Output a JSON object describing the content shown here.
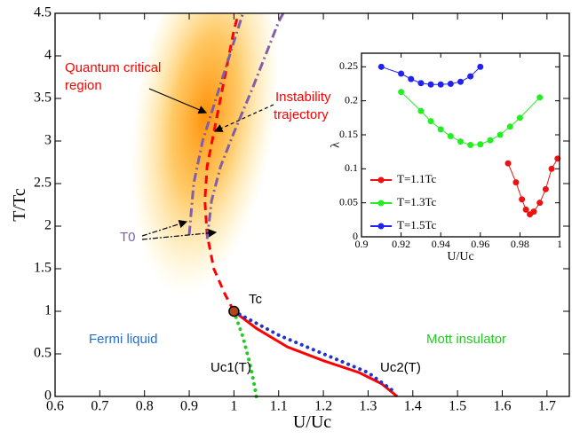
{
  "chart_data": [
    {
      "type": "line",
      "xlabel": "U/Uc",
      "ylabel": "T/Tc",
      "xlim": [
        0.6,
        1.75
      ],
      "ylim": [
        0,
        4.5
      ],
      "xticks": [
        0.6,
        0.7,
        0.8,
        0.9,
        1,
        1.1,
        1.2,
        1.3,
        1.4,
        1.5,
        1.6,
        1.7
      ],
      "yticks": [
        0,
        0.5,
        1,
        1.5,
        2,
        2.5,
        3,
        3.5,
        4,
        4.5
      ],
      "series": [
        {
          "color": "#ff0000",
          "style": "dashed",
          "x": [
            1,
            0.98,
            0.955,
            0.94,
            0.935,
            0.94,
            0.955,
            0.97,
            0.985,
            1.0,
            1.01
          ],
          "values": [
            1,
            1.2,
            1.5,
            1.9,
            2.3,
            2.7,
            3.1,
            3.5,
            3.9,
            4.3,
            4.5
          ]
        },
        {
          "color": "#ff0000",
          "style": "solid",
          "x": [
            1,
            1.05,
            1.12,
            1.2,
            1.28,
            1.33,
            1.365
          ],
          "values": [
            1,
            0.8,
            0.58,
            0.42,
            0.28,
            0.15,
            0
          ]
        },
        {
          "color": "#7f5fa8",
          "style": "dashdot",
          "x": [
            0.9,
            0.905,
            0.91,
            0.93,
            0.96,
            0.99,
            1.02
          ],
          "values": [
            1.9,
            2.2,
            2.5,
            3,
            3.5,
            4,
            4.5
          ]
        },
        {
          "color": "#7f5fa8",
          "style": "dashdot",
          "x": [
            0.94,
            0.95,
            0.97,
            1.0,
            1.04,
            1.07,
            1.1,
            1.11
          ],
          "values": [
            1.85,
            2.3,
            2.7,
            3.1,
            3.6,
            4.0,
            4.4,
            4.5
          ]
        },
        {
          "color": "#22cc22",
          "style": "dotted",
          "x": [
            1,
            1.02,
            1.035,
            1.045,
            1.05
          ],
          "values": [
            1,
            0.7,
            0.4,
            0.15,
            0
          ]
        },
        {
          "color": "#2233cc",
          "style": "dotted",
          "x": [
            1,
            1.1,
            1.2,
            1.3,
            1.36
          ],
          "values": [
            1,
            0.72,
            0.5,
            0.28,
            0.05
          ]
        }
      ],
      "critical_point": {
        "x": 1,
        "y": 1,
        "color": "#b5451b"
      },
      "annotations": [
        {
          "text": "Quantum critical",
          "color": "#ff0000"
        },
        {
          "text": "region",
          "color": "#ff0000"
        },
        {
          "text": "Instability",
          "color": "#ff0000"
        },
        {
          "text": "trajectory",
          "color": "#ff0000"
        },
        {
          "text": "T0",
          "color": "#7f5fa8"
        },
        {
          "text": "Tc",
          "color": "#000000"
        },
        {
          "text": "Fermi liquid",
          "color": "#1f6fe0"
        },
        {
          "text": "Mott insulator",
          "color": "#22cc22"
        },
        {
          "text": "Uc1(T)",
          "color": "#000000"
        },
        {
          "text": "Uc2(T)",
          "color": "#000000"
        }
      ]
    },
    {
      "type": "line",
      "xlabel": "U/Uc",
      "ylabel": "λ",
      "xlim": [
        0.9,
        1.0
      ],
      "ylim": [
        0,
        0.27
      ],
      "xticks": [
        0.9,
        0.92,
        0.94,
        0.96,
        0.98,
        1
      ],
      "yticks": [
        0,
        0.05,
        0.1,
        0.15,
        0.2,
        0.25
      ],
      "legend": "lower left",
      "series": [
        {
          "name": "T=1.1Tc",
          "color": "#ee1111",
          "x": [
            0.974,
            0.978,
            0.981,
            0.983,
            0.985,
            0.987,
            0.99,
            0.993,
            0.996,
            0.999
          ],
          "values": [
            0.108,
            0.08,
            0.055,
            0.04,
            0.033,
            0.037,
            0.05,
            0.07,
            0.1,
            0.115
          ]
        },
        {
          "name": "T=1.3Tc",
          "color": "#22ee22",
          "x": [
            0.92,
            0.93,
            0.935,
            0.94,
            0.945,
            0.95,
            0.955,
            0.96,
            0.965,
            0.97,
            0.975,
            0.98,
            0.99
          ],
          "values": [
            0.213,
            0.185,
            0.17,
            0.158,
            0.148,
            0.14,
            0.135,
            0.136,
            0.142,
            0.15,
            0.162,
            0.175,
            0.205
          ]
        },
        {
          "name": "T=1.5Tc",
          "color": "#2222ee",
          "x": [
            0.91,
            0.92,
            0.925,
            0.93,
            0.935,
            0.94,
            0.945,
            0.95,
            0.955,
            0.96
          ],
          "values": [
            0.25,
            0.24,
            0.232,
            0.226,
            0.224,
            0.224,
            0.225,
            0.228,
            0.236,
            0.25
          ]
        }
      ]
    }
  ]
}
